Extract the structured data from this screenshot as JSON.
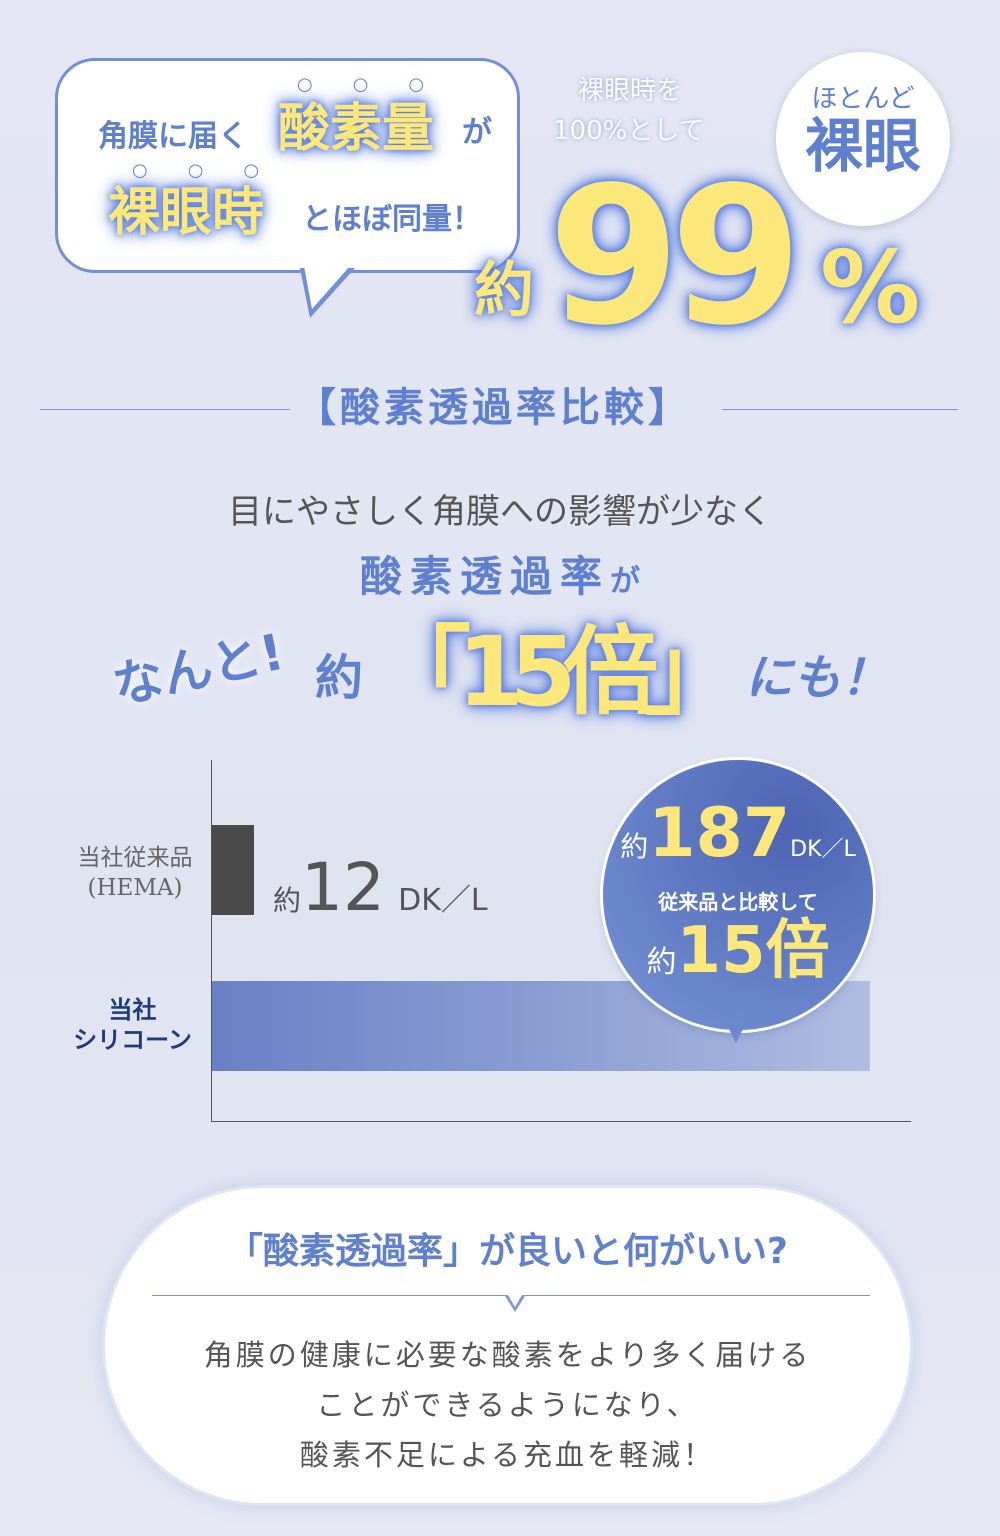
{
  "hero": {
    "bubble_line1_pre": "角膜に届く",
    "bubble_line1_emph": "酸素量",
    "bubble_line1_post": "が",
    "bubble_line2_emph": "裸眼時",
    "bubble_line2_post": "とほぼ同量！",
    "note_line1": "裸眼時を",
    "note_line2": "100%として",
    "approx": "約",
    "value": "99",
    "unit": "%",
    "badge_line1": "ほとんど",
    "badge_line2": "裸眼"
  },
  "section": {
    "title": "【酸素透過率比較】",
    "lead": "目にやさしく角膜への影響が少なく",
    "sub_emph": "酸素透過率",
    "sub_post": "が",
    "exclaim": "なんと!",
    "approx": "約",
    "big": "「15倍」",
    "tail": "にも！"
  },
  "chart_data": {
    "type": "bar",
    "orientation": "horizontal",
    "categories": [
      "当社従来品\n(HEMA)",
      "当社シリコーン"
    ],
    "category_lines": [
      [
        "当社従来品",
        "(HEMA)"
      ],
      [
        "当社",
        "シリコーン"
      ]
    ],
    "values": [
      12,
      187
    ],
    "unit": "DK／L",
    "colors": [
      "#4a4a4a",
      "#6a80c6"
    ],
    "value_label_1": {
      "approx": "約",
      "value": "12",
      "unit": "DK／L"
    },
    "callout": {
      "approx": "約",
      "value": "187",
      "unit": "DK／L",
      "compare": "従来品と比較して",
      "ratio_approx": "約",
      "ratio": "15倍"
    },
    "xlim": [
      0,
      187
    ],
    "grid": false
  },
  "faq": {
    "question": "「酸素透過率」が良いと何がいい?",
    "answer": [
      "角膜の健康に必要な酸素をより多く届ける",
      "ことができるようになり、",
      "酸素不足による充血を軽減！"
    ]
  },
  "colors": {
    "accent": "#5f80d0",
    "highlight": "#fbe77a",
    "background": "#e3e6f2"
  }
}
